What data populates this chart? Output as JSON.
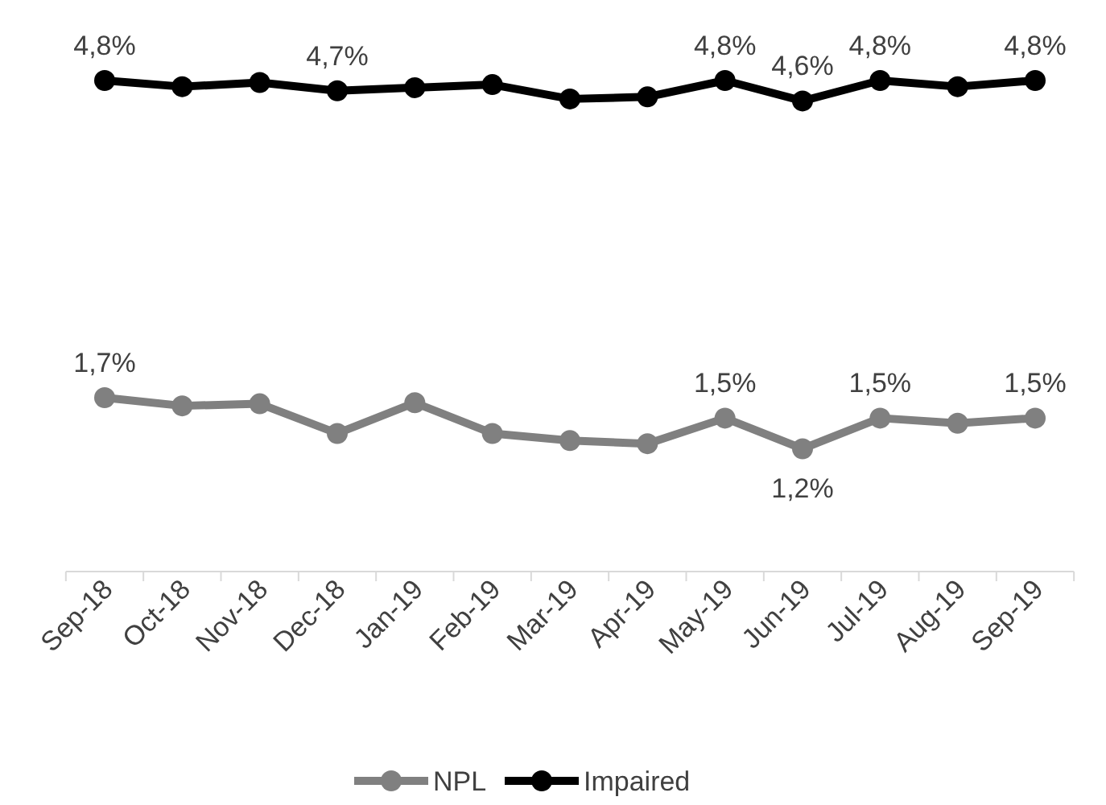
{
  "chart_data": {
    "type": "line",
    "categories": [
      "Sep-18",
      "Oct-18",
      "Nov-18",
      "Dec-18",
      "Jan-19",
      "Feb-19",
      "Mar-19",
      "Apr-19",
      "May-19",
      "Jun-19",
      "Jul-19",
      "Aug-19",
      "Sep-19"
    ],
    "series": [
      {
        "name": "NPL",
        "color": "#808080",
        "values": [
          1.7,
          1.62,
          1.64,
          1.35,
          1.65,
          1.35,
          1.28,
          1.25,
          1.5,
          1.2,
          1.5,
          1.45,
          1.5
        ],
        "value_labels": [
          "1,7%",
          null,
          null,
          null,
          null,
          null,
          null,
          null,
          "1,5%",
          "1,2%",
          "1,5%",
          null,
          "1,5%"
        ]
      },
      {
        "name": "Impaired",
        "color": "#000000",
        "values": [
          4.8,
          4.74,
          4.78,
          4.7,
          4.73,
          4.76,
          4.62,
          4.64,
          4.8,
          4.6,
          4.8,
          4.74,
          4.8
        ],
        "value_labels": [
          "4,8%",
          null,
          null,
          "4,7%",
          null,
          null,
          null,
          null,
          "4,8%",
          "4,6%",
          "4,8%",
          null,
          "4,8%"
        ]
      }
    ],
    "tick_labels": "x",
    "legend": "bottom",
    "marker": "circle",
    "line_style": "solid"
  }
}
